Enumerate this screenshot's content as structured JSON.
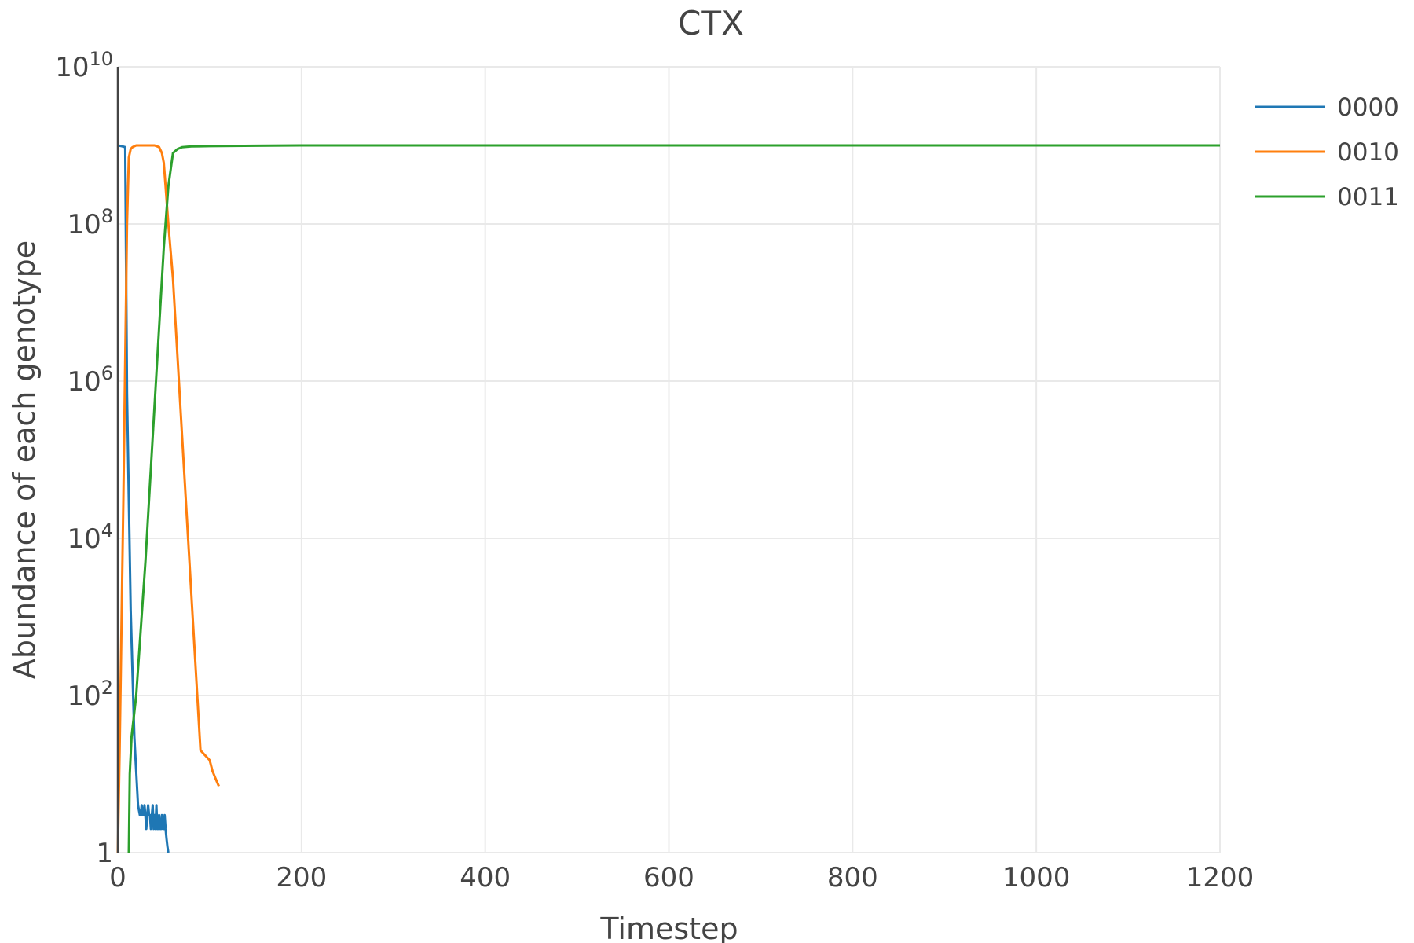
{
  "chart_data": {
    "type": "line",
    "title": "CTX",
    "xlabel": "Timestep",
    "ylabel": "Abundance of each genotype",
    "xlim": [
      0,
      1200
    ],
    "ylim": [
      1,
      10000000000
    ],
    "y_scale": "log",
    "grid": true,
    "legend_position": "top-right",
    "x_ticks": [
      0,
      200,
      400,
      600,
      800,
      1000,
      1200
    ],
    "x_tick_labels": [
      "0",
      "200",
      "400",
      "600",
      "800",
      "1000",
      "1200"
    ],
    "y_ticks": [
      {
        "value": 1,
        "base": "1",
        "exp": ""
      },
      {
        "value": 100,
        "base": "10",
        "exp": "2"
      },
      {
        "value": 10000,
        "base": "10",
        "exp": "4"
      },
      {
        "value": 1000000,
        "base": "10",
        "exp": "6"
      },
      {
        "value": 100000000,
        "base": "10",
        "exp": "8"
      },
      {
        "value": 10000000000,
        "base": "10",
        "exp": "10"
      }
    ],
    "series": [
      {
        "name": "0000",
        "color": "#1f77b4",
        "x": [
          0,
          4,
          8,
          10,
          14,
          18,
          22,
          24,
          25,
          26,
          27,
          28,
          29,
          30,
          31,
          32,
          33,
          34,
          35,
          36,
          37,
          38,
          39,
          40,
          41,
          42,
          43,
          44,
          45,
          46,
          47,
          48,
          49,
          50,
          51,
          52,
          53,
          54,
          55
        ],
        "y": [
          1000000000,
          980000000,
          950000000,
          700000,
          1200,
          30,
          4,
          3,
          3,
          4,
          3,
          3,
          4,
          3,
          2,
          3,
          4,
          3,
          3,
          2,
          3,
          4,
          2,
          3,
          2,
          4,
          2,
          2,
          3,
          2,
          2,
          3,
          2,
          2,
          3,
          2,
          1.5,
          1.2,
          1
        ]
      },
      {
        "name": "0010",
        "color": "#ff7f0e",
        "x": [
          0,
          2,
          6,
          10,
          12,
          14,
          16,
          20,
          30,
          40,
          45,
          48,
          50,
          52,
          55,
          60,
          70,
          80,
          90,
          100,
          103,
          106,
          110
        ],
        "y": [
          1,
          20,
          30000,
          100000000,
          700000000,
          900000000,
          950000000,
          1000000000,
          1000000000,
          1000000000,
          950000000,
          800000000,
          600000000,
          300000000,
          100000000,
          20000000,
          200000,
          2000,
          20,
          15,
          11,
          9,
          7
        ]
      },
      {
        "name": "0011",
        "color": "#2ca02c",
        "x": [
          12,
          13,
          15,
          20,
          30,
          40,
          50,
          55,
          60,
          65,
          70,
          80,
          100,
          150,
          200,
          400,
          600,
          800,
          1000,
          1200
        ],
        "y": [
          1,
          10,
          30,
          100,
          5000,
          500000,
          50000000,
          300000000,
          800000000,
          900000000,
          950000000,
          970000000,
          980000000,
          990000000,
          1000000000,
          1000000000,
          1000000000,
          1000000000,
          1000000000,
          1000000000
        ]
      }
    ]
  }
}
